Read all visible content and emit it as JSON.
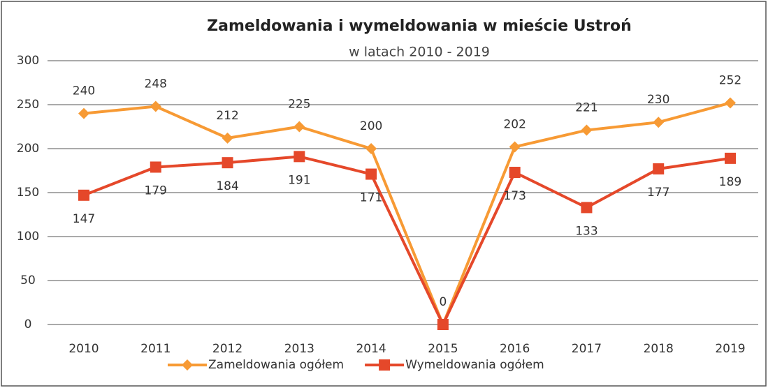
{
  "chart_data": {
    "type": "line",
    "title": "Zameldowania i wymeldowania w mieście Ustroń",
    "subtitle": "w latach 2010 - 2019",
    "categories": [
      "2010",
      "2011",
      "2012",
      "2013",
      "2014",
      "2015",
      "2016",
      "2017",
      "2018",
      "2019"
    ],
    "series": [
      {
        "name": "Zameldowania ogółem",
        "color": "#f79a34",
        "marker": "diamond",
        "values": [
          240,
          248,
          212,
          225,
          200,
          0,
          202,
          221,
          230,
          252
        ]
      },
      {
        "name": "Wymeldowania ogółem",
        "color": "#e5482a",
        "marker": "square",
        "values": [
          147,
          179,
          184,
          191,
          171,
          0,
          173,
          133,
          177,
          189
        ],
        "value_labels": [
          "147",
          "179",
          "184",
          "191",
          "171",
          null,
          "173",
          "133",
          "177",
          "189"
        ]
      }
    ],
    "ylim": [
      0,
      300
    ],
    "yticks": [
      0,
      50,
      100,
      150,
      200,
      250,
      300
    ],
    "grid": true,
    "legend": "bottom"
  }
}
